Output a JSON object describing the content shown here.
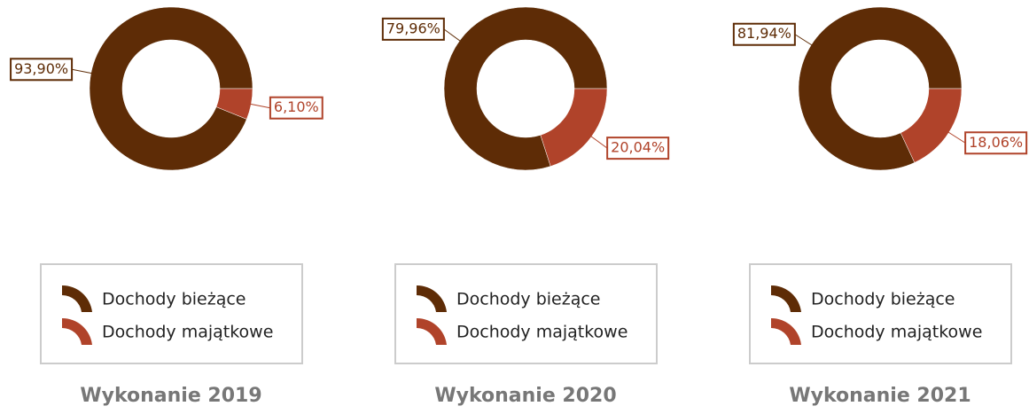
{
  "chart_data": [
    {
      "type": "donut",
      "title": "Wykonanie 2019",
      "categories": [
        "Dochody bieżące",
        "Dochody majątkowe"
      ],
      "values": [
        93.9,
        6.1
      ],
      "value_labels": [
        "93,90%",
        "6,10%"
      ],
      "colors": [
        "#5e2c06",
        "#b0432a"
      ]
    },
    {
      "type": "donut",
      "title": "Wykonanie 2020",
      "categories": [
        "Dochody bieżące",
        "Dochody majątkowe"
      ],
      "values": [
        79.96,
        20.04
      ],
      "value_labels": [
        "79,96%",
        "20,04%"
      ],
      "colors": [
        "#5e2c06",
        "#b0432a"
      ]
    },
    {
      "type": "donut",
      "title": "Wykonanie 2021",
      "categories": [
        "Dochody bieżące",
        "Dochody majątkowe"
      ],
      "values": [
        81.94,
        18.06
      ],
      "value_labels": [
        "81,94%",
        "18,06%"
      ],
      "colors": [
        "#5e2c06",
        "#b0432a"
      ]
    }
  ]
}
